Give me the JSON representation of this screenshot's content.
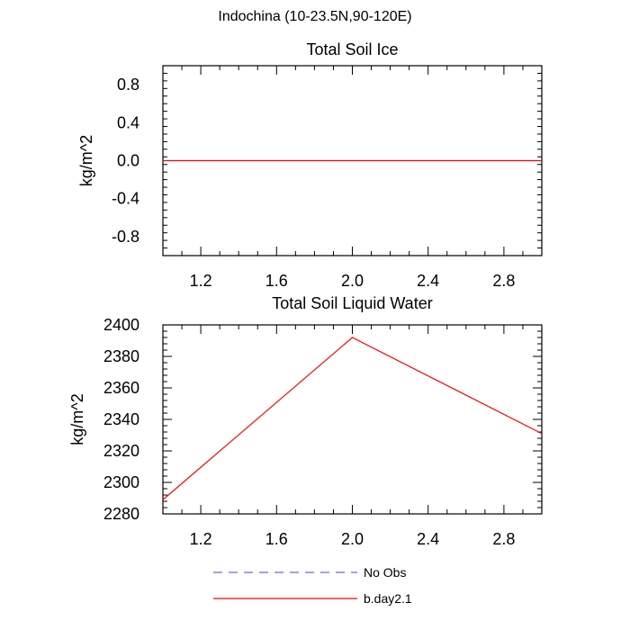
{
  "page_title": "Indochina (10-23.5N,90-120E)",
  "chart_data": [
    {
      "type": "line",
      "title": "Total Soil Ice",
      "xlabel": "",
      "ylabel": "kg/m^2",
      "xlim": [
        1.0,
        3.0
      ],
      "ylim": [
        -1.0,
        1.0
      ],
      "xticks": [
        1.2,
        1.6,
        2.0,
        2.4,
        2.8
      ],
      "xtick_labels": [
        "1.2",
        "1.6",
        "2.0",
        "2.4",
        "2.8"
      ],
      "yticks": [
        0.8,
        0.4,
        0.0,
        -0.4,
        -0.8
      ],
      "ytick_labels": [
        "0.8",
        "0.4",
        "0.0",
        "-0.4",
        "-0.8"
      ],
      "grid": false,
      "series": [
        {
          "name": "b.day2.1",
          "color": "#ff0000",
          "dash": "solid",
          "x": [
            1.0,
            2.0,
            3.0
          ],
          "y": [
            0.0,
            0.0,
            0.0
          ]
        }
      ]
    },
    {
      "type": "line",
      "title": "Total Soil Liquid Water",
      "xlabel": "",
      "ylabel": "kg/m^2",
      "xlim": [
        1.0,
        3.0
      ],
      "ylim": [
        2280,
        2400
      ],
      "xticks": [
        1.2,
        1.6,
        2.0,
        2.4,
        2.8
      ],
      "xtick_labels": [
        "1.2",
        "1.6",
        "2.0",
        "2.4",
        "2.8"
      ],
      "yticks": [
        2400,
        2380,
        2360,
        2340,
        2320,
        2300,
        2280
      ],
      "ytick_labels": [
        "2400",
        "2380",
        "2360",
        "2340",
        "2320",
        "2300",
        "2280"
      ],
      "grid": false,
      "series": [
        {
          "name": "b.day2.1",
          "color": "#ff0000",
          "dash": "solid",
          "x": [
            1.0,
            2.0,
            3.0
          ],
          "y": [
            2289,
            2392,
            2331
          ]
        }
      ]
    }
  ],
  "legend": {
    "position": "bottom-center",
    "items": [
      {
        "label": "No Obs",
        "color": "#6b6bd6",
        "dash": "dashed"
      },
      {
        "label": "b.day2.1",
        "color": "#ff0000",
        "dash": "solid"
      }
    ]
  }
}
